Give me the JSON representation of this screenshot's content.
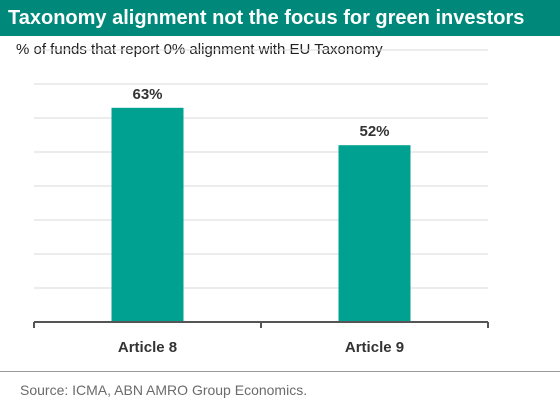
{
  "title": "Taxonomy alignment not the focus for green investors",
  "subtitle": "% of funds that report 0% alignment with EU Taxonomy",
  "source": "Source: ICMA, ABN AMRO Group Economics.",
  "colors": {
    "header_bg": "#00897b",
    "bar": "#00a191",
    "axis": "#555555",
    "grid": "#d9d9d9"
  },
  "chart_data": {
    "type": "bar",
    "categories": [
      "Article 8",
      "Article 9"
    ],
    "values": [
      63,
      52
    ],
    "value_labels": [
      "63%",
      "52%"
    ],
    "ylim": [
      0,
      80
    ],
    "grid": true,
    "xlabel": "",
    "ylabel": ""
  }
}
